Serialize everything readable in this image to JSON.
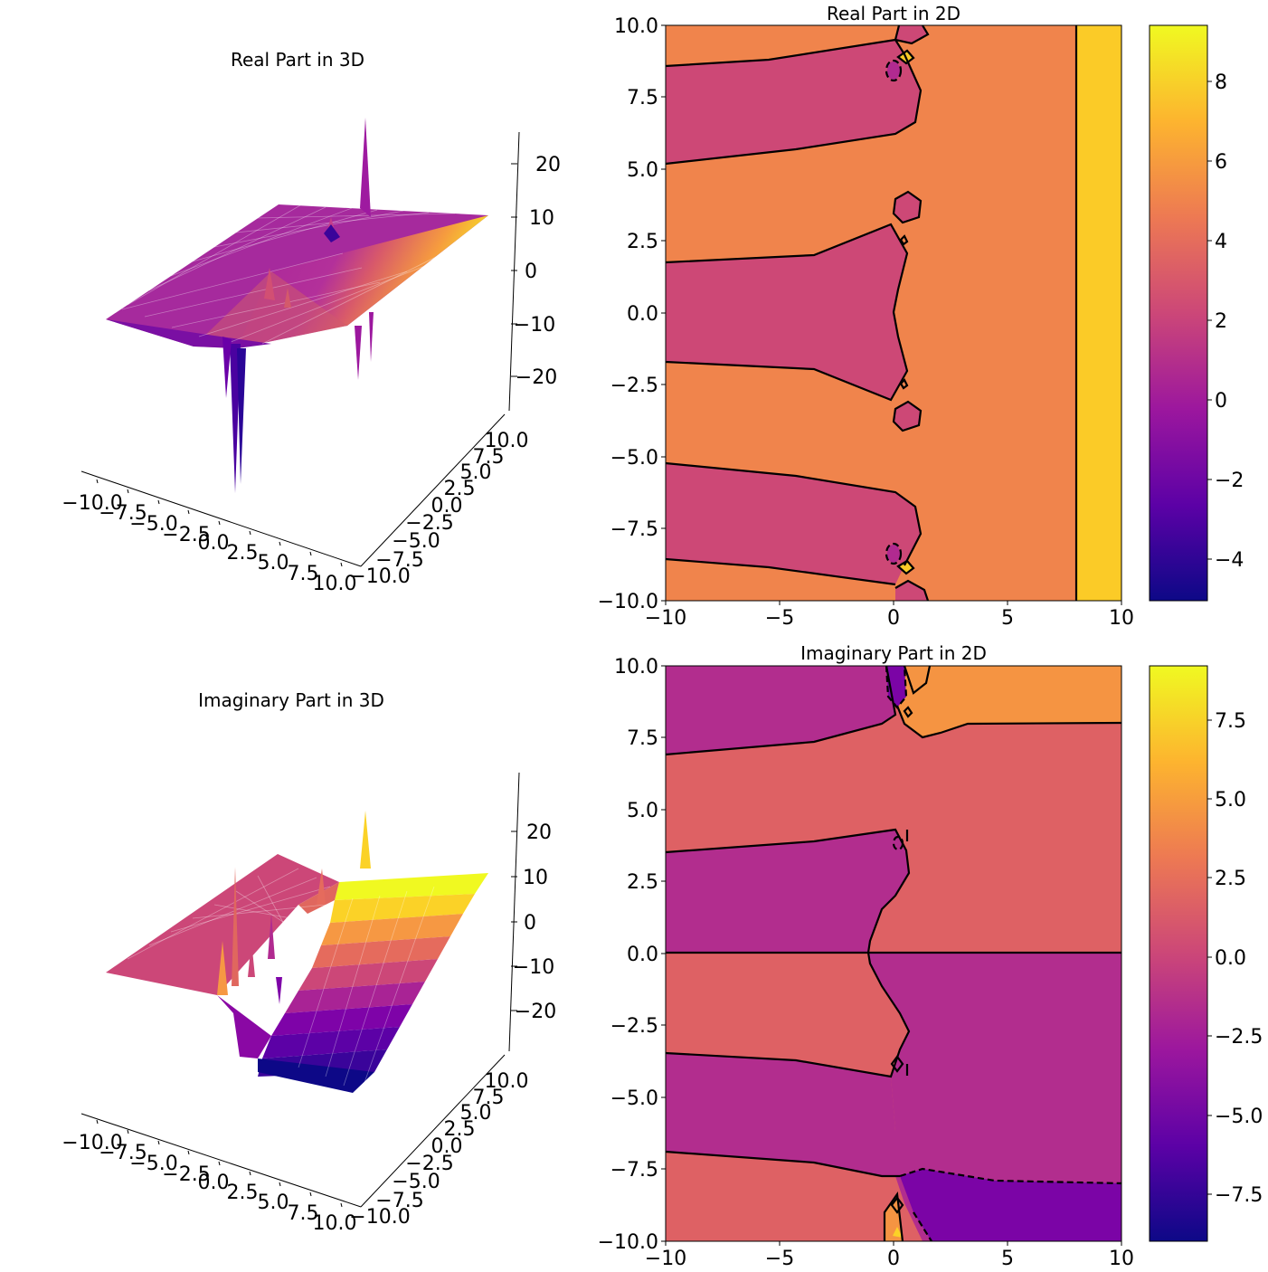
{
  "figure": {
    "panels": [
      {
        "title": "Real Part in 3D",
        "x_ticks": [
          "−10.0",
          "−7.5",
          "−5.0",
          "−2.5",
          "0.0",
          "2.5",
          "5.0",
          "7.5",
          "10.0"
        ],
        "y_ticks": [
          "−10.0",
          "−7.5",
          "−5.0",
          "−2.5",
          "0.0",
          "2.5",
          "5.0",
          "7.5",
          "10.0"
        ],
        "z_ticks": [
          "20",
          "10",
          "0",
          "−10",
          "−20"
        ]
      },
      {
        "title": "Real Part in 2D",
        "x_ticks": [
          "−10",
          "−5",
          "0",
          "5",
          "10"
        ],
        "y_ticks": [
          "10.0",
          "7.5",
          "5.0",
          "2.5",
          "0.0",
          "−2.5",
          "−5.0",
          "−7.5",
          "−10.0"
        ],
        "colorbar_ticks": [
          "8",
          "6",
          "4",
          "2",
          "0",
          "−2",
          "−4"
        ]
      },
      {
        "title": "Imaginary Part in 3D",
        "x_ticks": [
          "−10.0",
          "−7.5",
          "−5.0",
          "−2.5",
          "0.0",
          "2.5",
          "5.0",
          "7.5",
          "10.0"
        ],
        "y_ticks": [
          "−10.0",
          "−7.5",
          "−5.0",
          "−2.5",
          "0.0",
          "2.5",
          "5.0",
          "7.5",
          "10.0"
        ],
        "z_ticks": [
          "20",
          "10",
          "0",
          "−10",
          "−20"
        ]
      },
      {
        "title": "Imaginary Part in 2D",
        "x_ticks": [
          "−10",
          "−5",
          "0",
          "5",
          "10"
        ],
        "y_ticks": [
          "10.0",
          "7.5",
          "5.0",
          "2.5",
          "0.0",
          "−2.5",
          "−5.0",
          "−7.5",
          "−10.0"
        ],
        "colorbar_ticks": [
          "7.5",
          "5.0",
          "2.5",
          "0.0",
          "−2.5",
          "−5.0",
          "−7.5"
        ]
      }
    ],
    "colormap": "plasma",
    "colormap_stops": [
      "#0d0887",
      "#5c01a6",
      "#9c179e",
      "#cc4778",
      "#ed7953",
      "#fdb42f",
      "#f0f921"
    ]
  },
  "chart_data": [
    {
      "type": "surface3d",
      "title": "Real Part in 3D",
      "x_range": [
        -10,
        10
      ],
      "y_range": [
        -10,
        10
      ],
      "z_range": [
        -25,
        25
      ],
      "x_ticks": [
        -10,
        -7.5,
        -5,
        -2.5,
        0,
        2.5,
        5,
        7.5,
        10
      ],
      "y_ticks": [
        -10,
        -7.5,
        -5,
        -2.5,
        0,
        2.5,
        5,
        7.5,
        10
      ],
      "z_ticks": [
        -20,
        -10,
        0,
        10,
        20
      ],
      "colormap": "plasma"
    },
    {
      "type": "contourf",
      "title": "Real Part in 2D",
      "x_range": [
        -10,
        10
      ],
      "y_range": [
        -10,
        10
      ],
      "colorbar_range": [
        -5,
        9.5
      ],
      "colorbar_ticks": [
        -4,
        -2,
        0,
        2,
        4,
        6,
        8
      ],
      "regions": [
        {
          "level": 2,
          "y_bands": [
            [
              5.2,
              8.6
            ],
            [
              -1.8,
              1.8
            ],
            [
              -8.6,
              -5.2
            ]
          ],
          "x_max": 1.1
        },
        {
          "level": 5,
          "note_value": 5
        },
        {
          "level": 8,
          "x_min": 8.0
        }
      ],
      "colormap": "plasma"
    },
    {
      "type": "surface3d",
      "title": "Imaginary Part in 3D",
      "x_range": [
        -10,
        10
      ],
      "y_range": [
        -10,
        10
      ],
      "z_range": [
        -25,
        25
      ],
      "x_ticks": [
        -10,
        -7.5,
        -5,
        -2.5,
        0,
        2.5,
        5,
        7.5,
        10
      ],
      "y_ticks": [
        -10,
        -7.5,
        -5,
        -2.5,
        0,
        2.5,
        5,
        7.5,
        10
      ],
      "z_ticks": [
        -20,
        -10,
        0,
        10,
        20
      ],
      "colormap": "plasma"
    },
    {
      "type": "contourf",
      "title": "Imaginary Part in 2D",
      "x_range": [
        -10,
        10
      ],
      "y_range": [
        -10,
        10
      ],
      "colorbar_range": [
        -9,
        9.2
      ],
      "colorbar_ticks": [
        -7.5,
        -5,
        -2.5,
        0,
        2.5,
        5,
        7.5
      ],
      "colormap": "plasma"
    }
  ]
}
